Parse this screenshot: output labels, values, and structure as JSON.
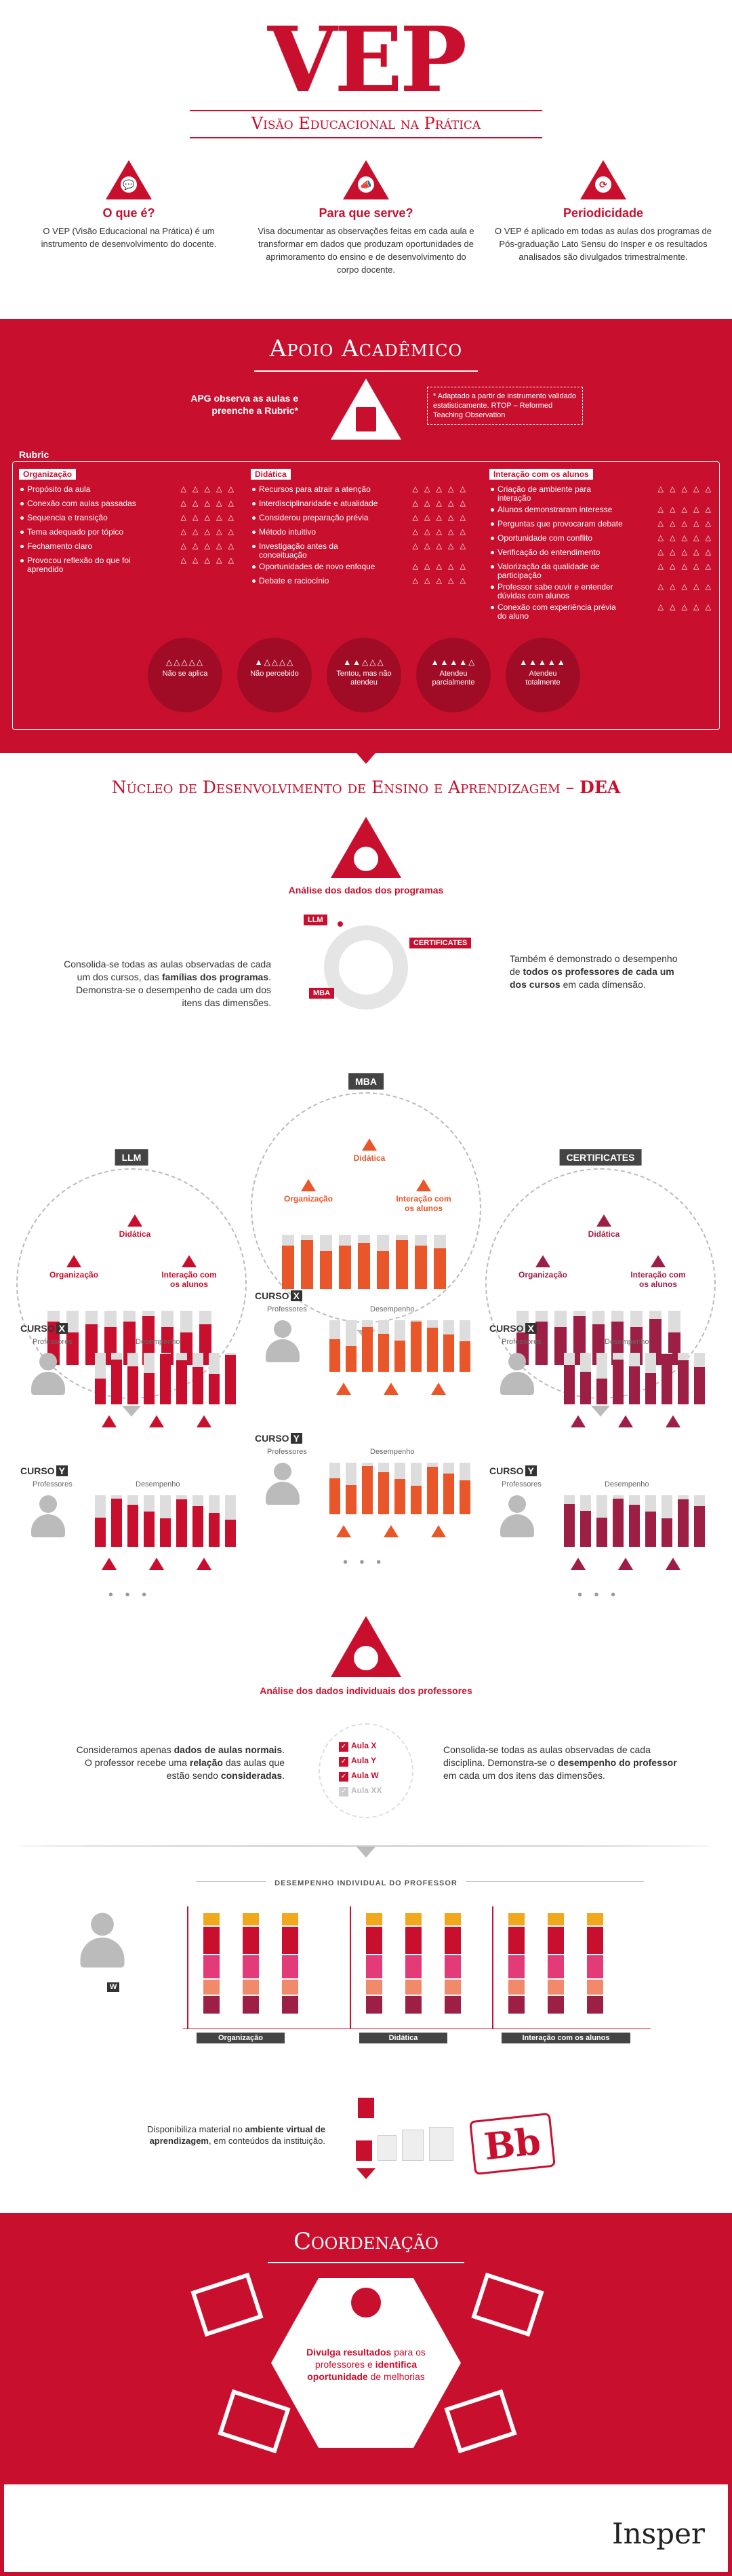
{
  "header": {
    "logo": "VEP",
    "subtitle": "Visão Educacional na Prática",
    "cols": [
      {
        "title": "O que é?",
        "text": "O VEP (Visão Educacional na Prática) é um instrumento de desenvolvimento do docente."
      },
      {
        "title": "Para que serve?",
        "text": "Visa documentar as observações feitas em cada aula e transformar em dados que produzam oportunidades de aprimoramento do ensino e de desenvolvimento do corpo docente."
      },
      {
        "title": "Periodicidade",
        "text": "O VEP é aplicado em todas as aulas dos programas de Pós-graduação Lato Sensu do Insper e os resultados analisados são divulgados trimestralmente."
      }
    ]
  },
  "apoio": {
    "title": "Apoio Acadêmico",
    "apg": "APG observa as aulas e preenche a Rubric*",
    "note": "* Adaptado a partir de instrumento validado estatisticamente. RTOP – Reformed Teaching Observation",
    "rubric_label": "Rubric",
    "groups": [
      {
        "head": "Organização",
        "items": [
          "Propósito da aula",
          "Conexão com aulas passadas",
          "Sequencia e transição",
          "Tema adequado por tópico",
          "Fechamento claro",
          "Provocou reflexão do que foi aprendido"
        ]
      },
      {
        "head": "Didática",
        "items": [
          "Recursos para atrair a atenção",
          "Interdisciplinaridade e atualidade",
          "Considerou preparação prévia",
          "Método intuitivo",
          "Investigação antes da conceituação",
          "Oportunidades de novo enfoque",
          "Debate e raciocínio"
        ]
      },
      {
        "head": "Interação com os alunos",
        "items": [
          "Criação de ambiente para interação",
          "Alunos demonstraram interesse",
          "Perguntas que provocaram debate",
          "Oportunidade com conflito",
          "Verificação do entendimento",
          "Valorização da qualidade de participação",
          "Professor sabe ouvir e entender dúvidas com alunos",
          "Conexão com experiência prévia do aluno"
        ]
      }
    ],
    "tri_row": "△ △ △ △ △",
    "scale": [
      {
        "tris": "△△△△△",
        "label": "Não se aplica"
      },
      {
        "tris": "▲△△△△",
        "label": "Não percebido"
      },
      {
        "tris": "▲▲△△△",
        "label": "Tentou, mas não atendeu"
      },
      {
        "tris": "▲▲▲▲△",
        "label": "Atendeu parcialmente"
      },
      {
        "tris": "▲▲▲▲▲",
        "label": "Atendeu totalmente"
      }
    ]
  },
  "nucleo": {
    "title": "Núcleo de Desenvolvimento de Ensino e Aprendizagem –",
    "title_b": "DEA",
    "analise1": "Análise dos dados dos programas",
    "ring_labels": [
      "LLM",
      "CERTIFICATES",
      "MBA"
    ],
    "left_text_a": "Consolida-se todas as aulas observadas de cada um dos cursos, das",
    "left_text_b": "famílias dos programas",
    "left_text_c": ". Demonstra-se o desempenho de cada um dos itens das dimensões.",
    "right_text_a": "Também é demonstrado o desempenho de",
    "right_text_b": "todos os professores de cada um dos cursos",
    "right_text_c": "em cada dimensão.",
    "programs": [
      "LLM",
      "MBA",
      "CERTIFICATES"
    ],
    "dims": [
      "Didática",
      "Organização",
      "Interação com os alunos"
    ],
    "curso_label": "CURSO",
    "curso_x": "X",
    "curso_y": "Y",
    "professores": "Professores",
    "desempenho": "Desempenho",
    "ellipsis": "• • •",
    "analise2": "Análise dos dados individuais dos professores",
    "ind_left_a": "Consideramos apenas",
    "ind_left_b": "dados de aulas normais",
    "ind_left_c": ". O professor recebe uma",
    "ind_left_d": "relação",
    "ind_left_e": "das aulas que estão sendo",
    "ind_left_f": "consideradas",
    "ind_right_a": "Consolida-se todas as aulas observadas de cada disciplina. Demonstra-se o",
    "ind_right_b": "desempenho do professor",
    "ind_right_c": "em cada um dos itens das dimensões.",
    "aulas": [
      "Aula X",
      "Aula Y",
      "Aula W",
      "Aula XX"
    ],
    "desempenho_ind": "DESEMPENHO INDIVIDUAL DO PROFESSOR",
    "prof_letter": "W",
    "ind_dims": [
      "Organização",
      "Didática",
      "Interação com os alunos"
    ],
    "bb_text_a": "Disponibiliza material no",
    "bb_text_b": "ambiente virtual de aprendizagem",
    "bb_text_c": ", em conteúdos da instituição.",
    "bb_logo": "Bb"
  },
  "coord": {
    "title": "Coordenação",
    "text_a": "Divulga resultados",
    "text_b": "para os professores e",
    "text_c": "identifica oportunidade",
    "text_d": "de melhorias"
  },
  "footer": {
    "logo": "Insper"
  },
  "colors": {
    "red": "#c8102e",
    "orange": "#e8562a",
    "plum": "#9e1f45",
    "grey": "#dcdcdc"
  }
}
